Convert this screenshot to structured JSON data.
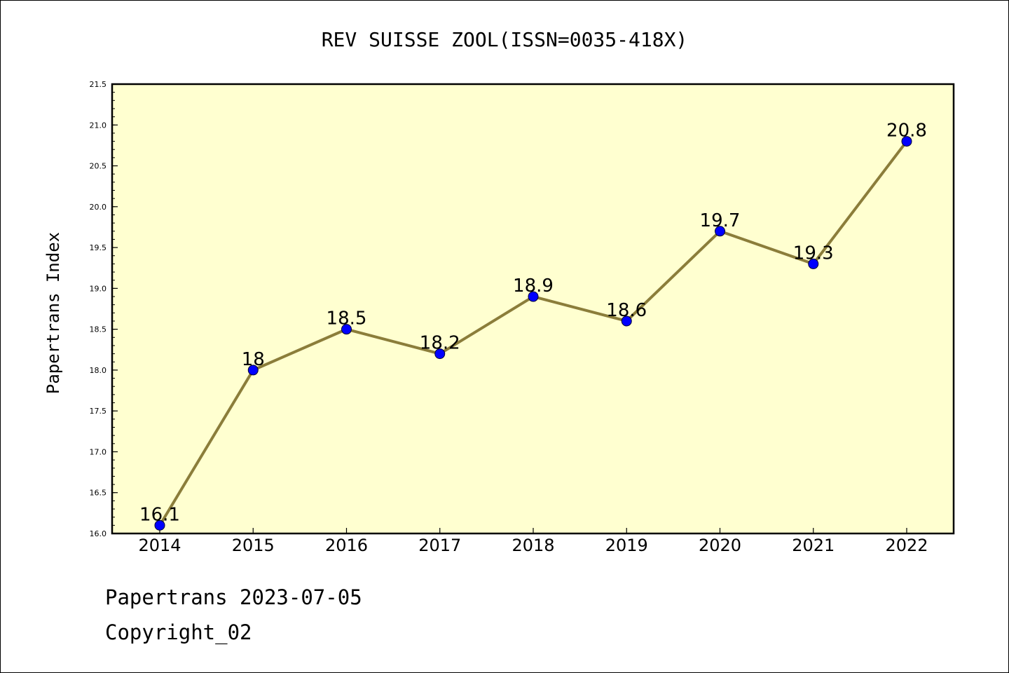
{
  "chart_data": {
    "type": "line",
    "title": "REV SUISSE ZOOL(ISSN=0035-418X)",
    "ylabel": "Papertrans Index",
    "xlabel": "",
    "categories": [
      "2014",
      "2015",
      "2016",
      "2017",
      "2018",
      "2019",
      "2020",
      "2021",
      "2022"
    ],
    "series": [
      {
        "values": [
          16.1,
          18,
          18.5,
          18.2,
          18.9,
          18.6,
          19.7,
          19.3,
          20.8
        ],
        "labels": [
          "16.1",
          "18",
          "18.5",
          "18.2",
          "18.9",
          "18.6",
          "19.7",
          "19.3",
          "20.8"
        ]
      }
    ],
    "ylim": [
      16.0,
      21.5
    ],
    "yticks": [
      "16.0",
      "16.5",
      "17.0",
      "17.5",
      "18.0",
      "18.5",
      "19.0",
      "19.5",
      "20.0",
      "20.5",
      "21.0",
      "21.5"
    ],
    "grid": false,
    "legend": "none",
    "colors": {
      "plot_background": "#ffffd0",
      "line": "#8b7d3a",
      "marker": "#0000ff"
    }
  },
  "footer": {
    "date_line": "Papertrans 2023-07-05",
    "copyright_line": "Copyright_02"
  }
}
